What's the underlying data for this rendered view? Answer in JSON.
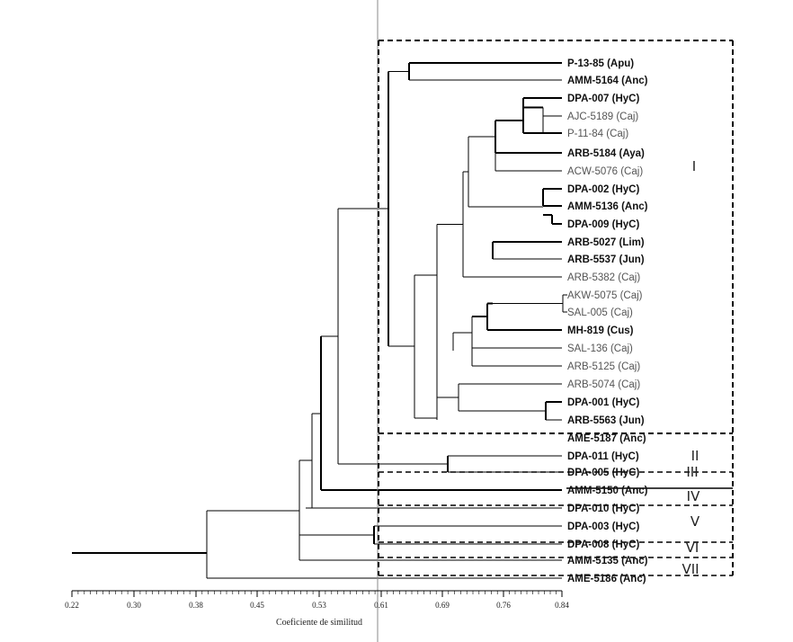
{
  "axis": {
    "title": "Coeficiente de similitud",
    "ticks": [
      "0.22",
      "0.30",
      "0.38",
      "0.45",
      "0.53",
      "0.61",
      "0.69",
      "0.76",
      "0.84"
    ]
  },
  "leaves": [
    {
      "label": "P-13-85 (Apu)",
      "bold": true
    },
    {
      "label": "AMM-5164 (Anc)",
      "bold": true
    },
    {
      "label": "DPA-007 (HyC)",
      "bold": true
    },
    {
      "label": "AJC-5189 (Caj)",
      "bold": false
    },
    {
      "label": "P-11-84 (Caj)",
      "bold": false
    },
    {
      "label": "ARB-5184 (Aya)",
      "bold": true
    },
    {
      "label": "ACW-5076 (Caj)",
      "bold": false
    },
    {
      "label": "DPA-002 (HyC)",
      "bold": true
    },
    {
      "label": "AMM-5136 (Anc)",
      "bold": true
    },
    {
      "label": "DPA-009 (HyC)",
      "bold": true
    },
    {
      "label": "ARB-5027 (Lim)",
      "bold": true
    },
    {
      "label": "ARB-5537 (Jun)",
      "bold": true
    },
    {
      "label": "ARB-5382 (Caj)",
      "bold": false
    },
    {
      "label": "AKW-5075 (Caj)",
      "bold": false
    },
    {
      "label": "SAL-005 (Caj)",
      "bold": false
    },
    {
      "label": "MH-819 (Cus)",
      "bold": true
    },
    {
      "label": "SAL-136 (Caj)",
      "bold": false
    },
    {
      "label": "ARB-5125 (Caj)",
      "bold": false
    },
    {
      "label": "ARB-5074 (Caj)",
      "bold": false
    },
    {
      "label": "DPA-001 (HyC)",
      "bold": true
    },
    {
      "label": "ARB-5563 (Jun)",
      "bold": true
    },
    {
      "label": "AME-5187 (Anc)",
      "bold": true
    },
    {
      "label": "DPA-011 (HyC)",
      "bold": true
    },
    {
      "label": "DPA-005 (HyC)",
      "bold": true
    },
    {
      "label": "AMM-5150 (Anc)",
      "bold": true
    },
    {
      "label": "DPA-010 (HyC)",
      "bold": true
    },
    {
      "label": "DPA-003 (HyC)",
      "bold": true
    },
    {
      "label": "DPA-008 (HyC)",
      "bold": true
    },
    {
      "label": "AMM-5135 (Anc)",
      "bold": true
    },
    {
      "label": "AME-5186 (Anc)",
      "bold": true
    }
  ],
  "groups": [
    "I",
    "II",
    "III",
    "IV",
    "V",
    "VI",
    "VII"
  ]
}
